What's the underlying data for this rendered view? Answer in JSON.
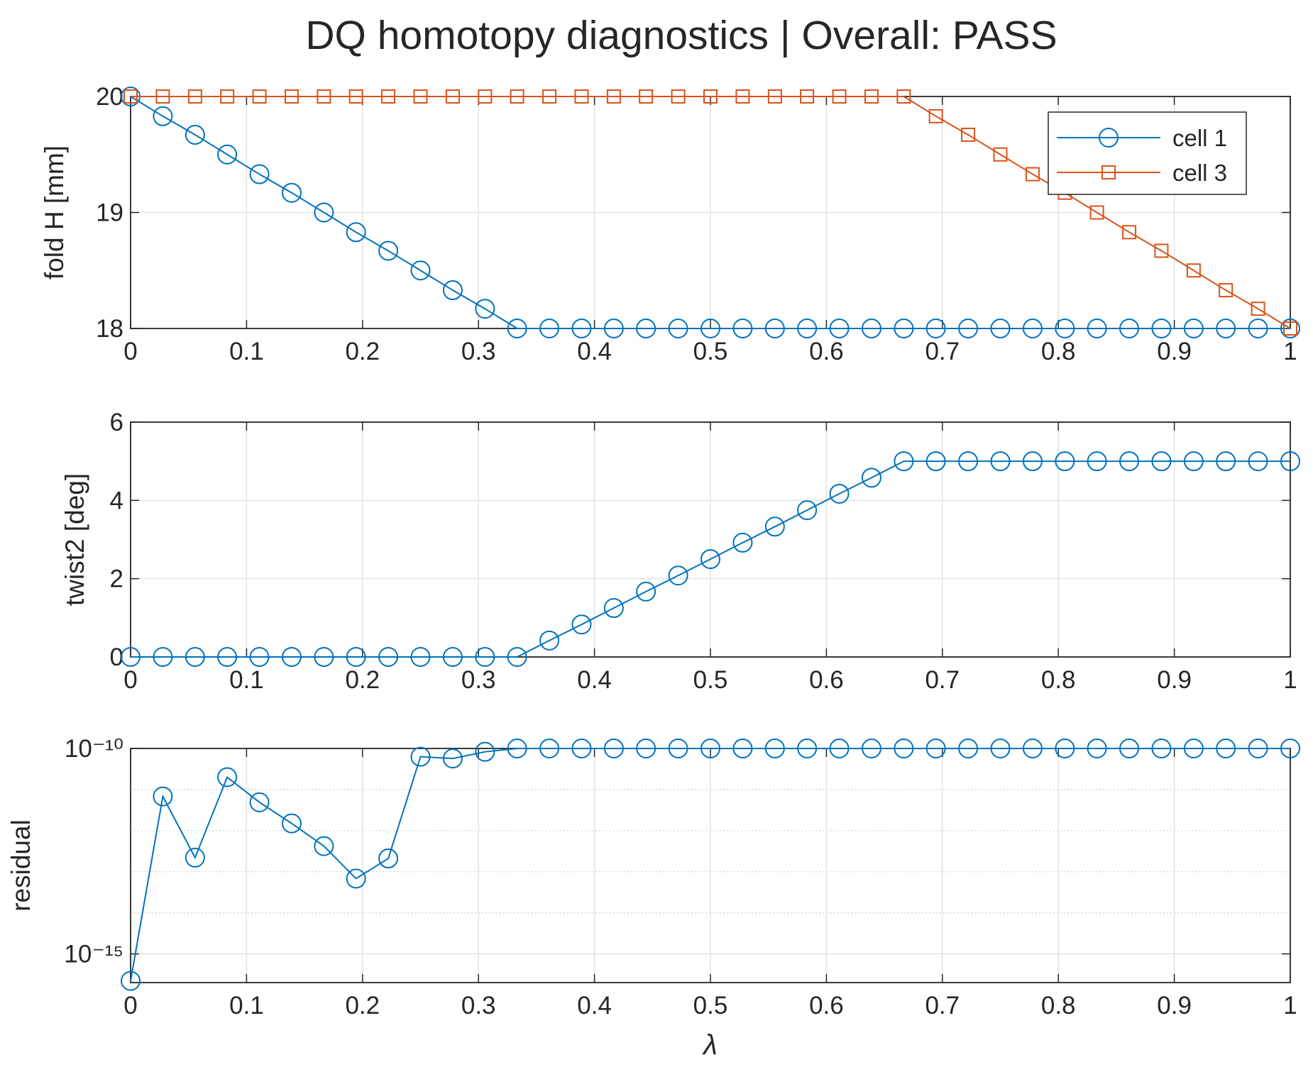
{
  "title": "DQ homotopy diagnostics | Overall: PASS",
  "chart_data": [
    {
      "type": "line",
      "ylabel": "fold H [mm]",
      "x": [
        0,
        0.0278,
        0.0556,
        0.0833,
        0.1111,
        0.1389,
        0.1667,
        0.1944,
        0.2222,
        0.25,
        0.2778,
        0.3056,
        0.3333,
        0.3611,
        0.3889,
        0.4167,
        0.4444,
        0.4722,
        0.5,
        0.5278,
        0.5556,
        0.5833,
        0.6111,
        0.6389,
        0.6667,
        0.6944,
        0.7222,
        0.75,
        0.7778,
        0.8056,
        0.8333,
        0.8611,
        0.8889,
        0.9167,
        0.9444,
        0.9722,
        1
      ],
      "series": [
        {
          "name": "cell 1",
          "color": "#0072bd",
          "marker": "circle",
          "values": [
            20,
            19.83,
            19.67,
            19.5,
            19.33,
            19.17,
            19,
            18.83,
            18.67,
            18.5,
            18.33,
            18.17,
            18,
            18,
            18,
            18,
            18,
            18,
            18,
            18,
            18,
            18,
            18,
            18,
            18,
            18,
            18,
            18,
            18,
            18,
            18,
            18,
            18,
            18,
            18,
            18,
            18
          ]
        },
        {
          "name": "cell 3",
          "color": "#d95319",
          "marker": "square",
          "values": [
            20,
            20,
            20,
            20,
            20,
            20,
            20,
            20,
            20,
            20,
            20,
            20,
            20,
            20,
            20,
            20,
            20,
            20,
            20,
            20,
            20,
            20,
            20,
            20,
            20,
            19.83,
            19.67,
            19.5,
            19.33,
            19.17,
            19,
            18.83,
            18.67,
            18.5,
            18.33,
            18.17,
            18
          ]
        }
      ],
      "xlim": [
        0,
        1
      ],
      "xticks": [
        0,
        0.1,
        0.2,
        0.3,
        0.4,
        0.5,
        0.6,
        0.7,
        0.8,
        0.9,
        1
      ],
      "ylim": [
        18,
        20
      ],
      "yticks": [
        18,
        19,
        20
      ],
      "grid": true,
      "legend": "northeast"
    },
    {
      "type": "line",
      "ylabel": "twist2 [deg]",
      "x": [
        0,
        0.0278,
        0.0556,
        0.0833,
        0.1111,
        0.1389,
        0.1667,
        0.1944,
        0.2222,
        0.25,
        0.2778,
        0.3056,
        0.3333,
        0.3611,
        0.3889,
        0.4167,
        0.4444,
        0.4722,
        0.5,
        0.5278,
        0.5556,
        0.5833,
        0.6111,
        0.6389,
        0.6667,
        0.6944,
        0.7222,
        0.75,
        0.7778,
        0.8056,
        0.8333,
        0.8611,
        0.8889,
        0.9167,
        0.9444,
        0.9722,
        1
      ],
      "series": [
        {
          "color": "#0072bd",
          "marker": "circle",
          "values": [
            0,
            0,
            0,
            0,
            0,
            0,
            0,
            0,
            0,
            0,
            0,
            0,
            0,
            0.42,
            0.83,
            1.25,
            1.67,
            2.08,
            2.5,
            2.92,
            3.33,
            3.75,
            4.17,
            4.58,
            5,
            5,
            5,
            5,
            5,
            5,
            5,
            5,
            5,
            5,
            5,
            5,
            5
          ]
        }
      ],
      "xlim": [
        0,
        1
      ],
      "xticks": [
        0,
        0.1,
        0.2,
        0.3,
        0.4,
        0.5,
        0.6,
        0.7,
        0.8,
        0.9,
        1
      ],
      "ylim": [
        0,
        6
      ],
      "yticks": [
        0,
        2,
        4,
        6
      ],
      "grid": true
    },
    {
      "type": "line",
      "ylabel": "residual",
      "xlabel": "λ",
      "x": [
        0,
        0.0278,
        0.0556,
        0.0833,
        0.1111,
        0.1389,
        0.1667,
        0.1944,
        0.2222,
        0.25,
        0.2778,
        0.3056,
        0.3333,
        0.3611,
        0.3889,
        0.4167,
        0.4444,
        0.4722,
        0.5,
        0.5278,
        0.5556,
        0.5833,
        0.6111,
        0.6389,
        0.6667,
        0.6944,
        0.7222,
        0.75,
        0.7778,
        0.8056,
        0.8333,
        0.8611,
        0.8889,
        0.9167,
        0.9444,
        0.9722,
        1
      ],
      "series": [
        {
          "color": "#0072bd",
          "marker": "circle",
          "values": [
            2.2e-16,
            6.8e-12,
            2.2e-13,
            2e-11,
            4.9e-12,
            1.5e-12,
            4.2e-13,
            6.8e-14,
            2.1e-13,
            6.3e-11,
            5.7e-11,
            8.3e-11,
            1e-10,
            1e-10,
            1e-10,
            1e-10,
            1e-10,
            1e-10,
            1e-10,
            1e-10,
            1e-10,
            1e-10,
            1e-10,
            1e-10,
            1e-10,
            1e-10,
            1e-10,
            1e-10,
            1e-10,
            1e-10,
            1e-10,
            1e-10,
            1e-10,
            1e-10,
            1e-10,
            1e-10,
            1e-10
          ]
        }
      ],
      "xlim": [
        0,
        1
      ],
      "xticks": [
        0,
        0.1,
        0.2,
        0.3,
        0.4,
        0.5,
        0.6,
        0.7,
        0.8,
        0.9,
        1
      ],
      "ylim": [
        2e-16,
        1e-10
      ],
      "yscale": "log",
      "yticks": [
        {
          "value": 1e-15,
          "label": "10⁻¹⁵"
        },
        {
          "value": 1e-10,
          "label": "10⁻¹⁰"
        }
      ],
      "grid": true,
      "minor_grid": true
    }
  ]
}
